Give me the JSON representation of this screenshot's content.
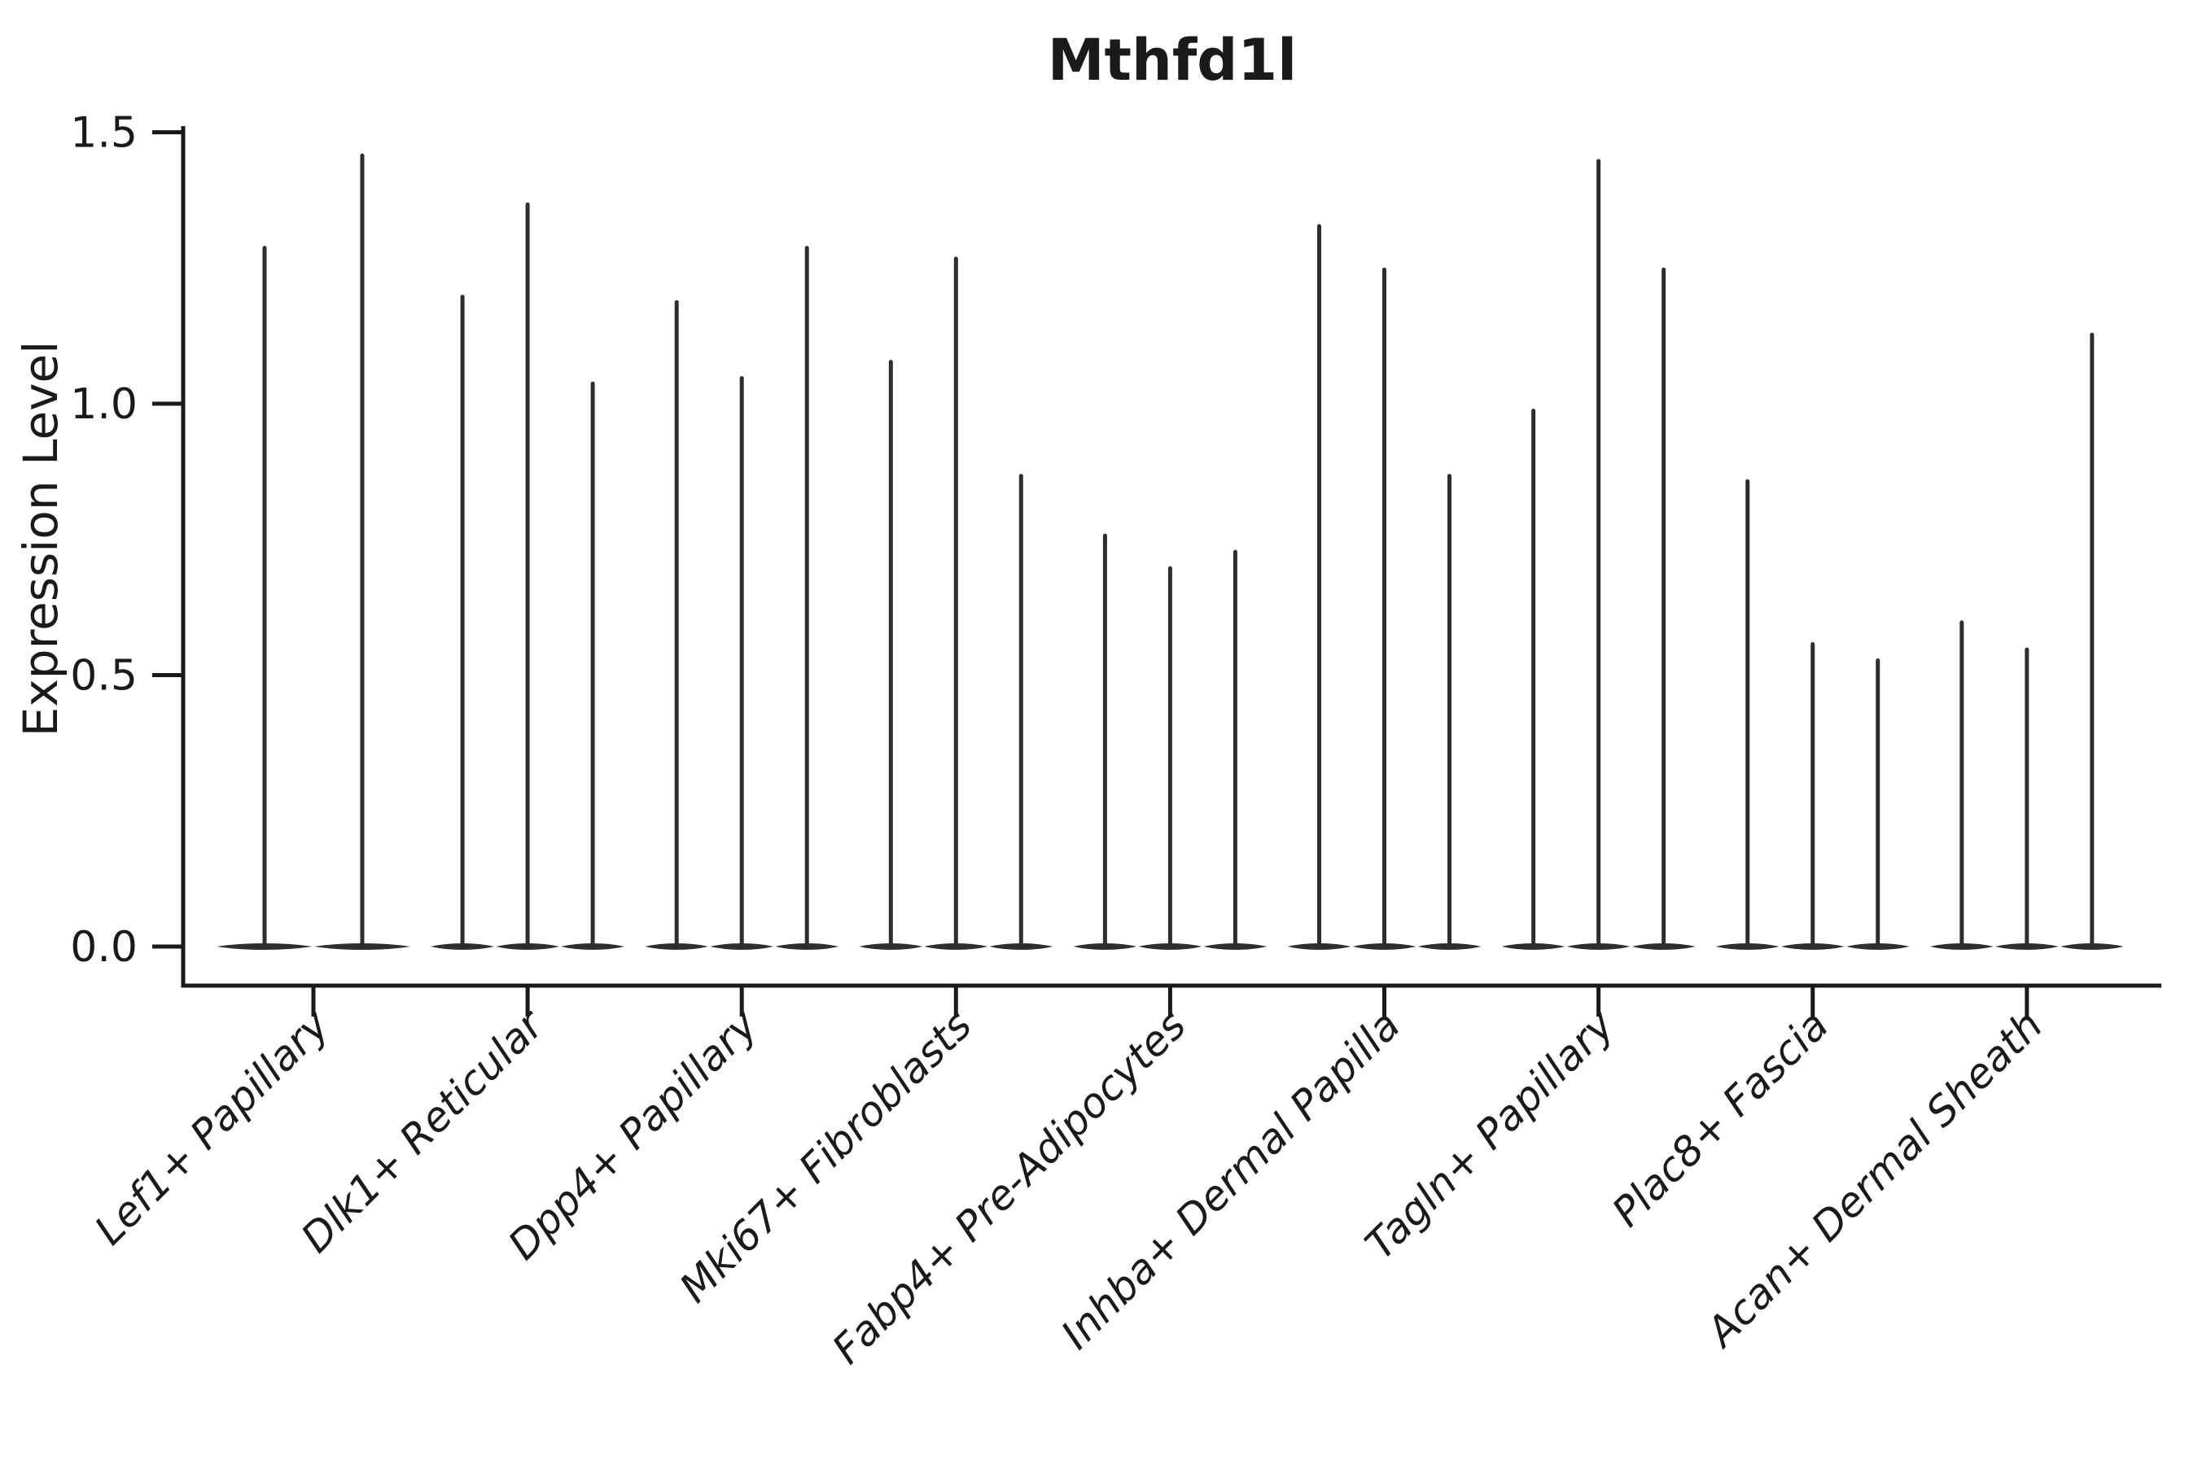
{
  "chart_data": {
    "type": "violin",
    "title": "Mthfd1l",
    "xlabel": "",
    "ylabel": "Expression Level",
    "yticks": [
      0.0,
      0.5,
      1.0,
      1.5
    ],
    "ytick_labels": [
      "0.0",
      "0.5",
      "1.0",
      "1.5"
    ],
    "ylim": [
      -0.07,
      1.5
    ],
    "grid": false,
    "legend_position": "none",
    "categories": [
      "Lef1+ Papillary",
      "Dlk1+ Reticular",
      "Dpp4+ Papillary",
      "Mki67+ Fibroblasts",
      "Fabp4+ Pre-Adipocytes",
      "Inhba+ Dermal Papilla",
      "Tagln+ Papillary",
      "Plac8+ Fascia",
      "Acan+ Dermal Sheath"
    ],
    "series": [
      {
        "category": "Lef1+ Papillary",
        "violin_max_values": [
          1.29,
          1.46
        ]
      },
      {
        "category": "Dlk1+ Reticular",
        "violin_max_values": [
          1.2,
          1.37,
          1.04
        ]
      },
      {
        "category": "Dpp4+ Papillary",
        "violin_max_values": [
          1.19,
          1.05,
          1.29
        ]
      },
      {
        "category": "Mki67+ Fibroblasts",
        "violin_max_values": [
          1.08,
          1.27,
          0.87
        ]
      },
      {
        "category": "Fabp4+ Pre-Adipocytes",
        "violin_max_values": [
          0.76,
          0.7,
          0.73
        ]
      },
      {
        "category": "Inhba+ Dermal Papilla",
        "violin_max_values": [
          1.33,
          1.25,
          0.87
        ]
      },
      {
        "category": "Tagln+ Papillary",
        "violin_max_values": [
          0.99,
          1.45,
          1.25
        ]
      },
      {
        "category": "Plac8+ Fascia",
        "violin_max_values": [
          0.86,
          0.56,
          0.53
        ]
      },
      {
        "category": "Acan+ Dermal Sheath",
        "violin_max_values": [
          0.6,
          0.55,
          1.13
        ]
      }
    ],
    "colors": {
      "violin": "#2e2e2e",
      "axis": "#1a1a1a",
      "text": "#1a1a1a",
      "background": "#ffffff"
    }
  }
}
